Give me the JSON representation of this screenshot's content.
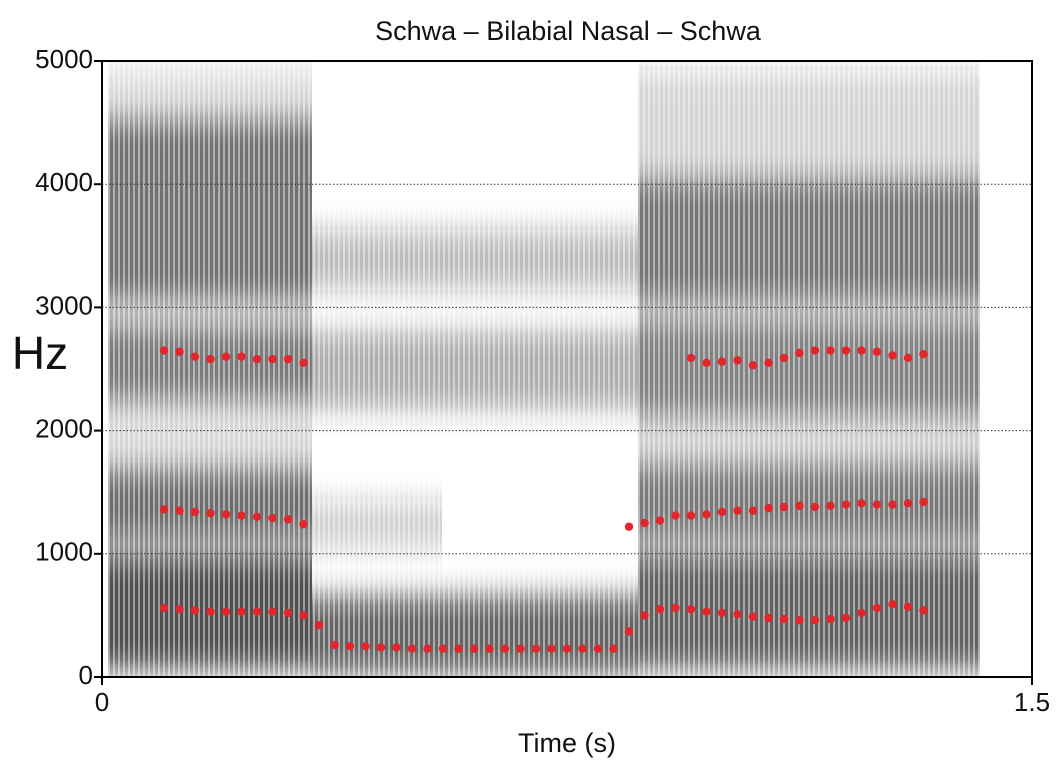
{
  "chart_data": {
    "type": "scatter",
    "title": "Schwa – Bilabial Nasal – Schwa",
    "x_label": "Time (s)",
    "y_label": "Hz",
    "xlim": [
      0,
      1.5
    ],
    "xticks": [
      0,
      1.5
    ],
    "ylim": [
      0,
      5000
    ],
    "yticks": [
      0,
      1000,
      2000,
      3000,
      4000,
      5000
    ],
    "grid": true,
    "x": [
      0.1,
      0.125,
      0.15,
      0.175,
      0.2,
      0.225,
      0.25,
      0.275,
      0.3,
      0.325,
      0.35,
      0.375,
      0.4,
      0.425,
      0.45,
      0.475,
      0.5,
      0.525,
      0.55,
      0.575,
      0.6,
      0.625,
      0.65,
      0.675,
      0.7,
      0.725,
      0.75,
      0.775,
      0.8,
      0.825,
      0.85,
      0.875,
      0.9,
      0.925,
      0.95,
      0.975,
      1.0,
      1.025,
      1.05,
      1.075,
      1.1,
      1.125,
      1.15,
      1.175,
      1.2,
      1.225,
      1.25,
      1.275,
      1.3,
      1.325
    ],
    "series": [
      {
        "color": "#e3262b",
        "values": [
          560,
          550,
          540,
          530,
          530,
          530,
          530,
          530,
          520,
          500,
          420,
          260,
          250,
          250,
          240,
          240,
          230,
          230,
          230,
          230,
          230,
          230,
          230,
          230,
          230,
          230,
          230,
          230,
          230,
          230,
          370,
          500,
          550,
          560,
          550,
          530,
          520,
          510,
          490,
          480,
          470,
          460,
          460,
          470,
          480,
          520,
          560,
          590,
          570,
          540
        ]
      },
      {
        "color": "#e3262b",
        "values": [
          1360,
          1350,
          1340,
          1330,
          1320,
          1310,
          1300,
          1290,
          1280,
          1240,
          null,
          null,
          null,
          null,
          null,
          null,
          null,
          null,
          null,
          null,
          null,
          null,
          null,
          null,
          null,
          null,
          null,
          null,
          null,
          null,
          1220,
          1250,
          1270,
          1310,
          1310,
          1320,
          1340,
          1350,
          1350,
          1370,
          1380,
          1390,
          1380,
          1390,
          1400,
          1410,
          1400,
          1400,
          1410,
          1420
        ]
      },
      {
        "color": "#e3262b",
        "values": [
          2650,
          2640,
          2600,
          2580,
          2600,
          2600,
          2580,
          2580,
          2580,
          2550,
          null,
          null,
          null,
          null,
          null,
          null,
          null,
          null,
          null,
          null,
          null,
          null,
          null,
          null,
          null,
          null,
          null,
          null,
          null,
          null,
          null,
          null,
          null,
          null,
          2590,
          2550,
          2560,
          2570,
          2530,
          2550,
          2590,
          2630,
          2650,
          2650,
          2650,
          2650,
          2640,
          2610,
          2590,
          2620
        ]
      }
    ]
  }
}
